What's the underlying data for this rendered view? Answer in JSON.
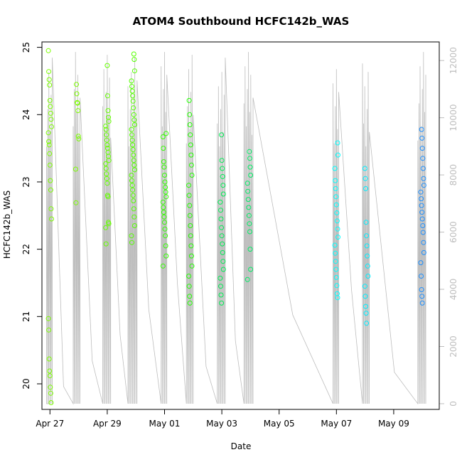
{
  "chart_data": {
    "type": "scatter",
    "title": "ATOM4 Southbound HCFC142b_WAS",
    "xlabel": "Date",
    "ylabel": "HCFC142b_WAS",
    "x_axis": {
      "range_days": [
        -0.28,
        13.59
      ],
      "ticks": [
        {
          "day": 0,
          "label": "Apr 27"
        },
        {
          "day": 2,
          "label": "Apr 29"
        },
        {
          "day": 4,
          "label": "May 01"
        },
        {
          "day": 6,
          "label": "May 03"
        },
        {
          "day": 8,
          "label": "May 05"
        },
        {
          "day": 10,
          "label": "May 07"
        },
        {
          "day": 12,
          "label": "May 09"
        }
      ]
    },
    "ylim": [
      19.62,
      25.08
    ],
    "y_ticks": [
      20,
      21,
      22,
      23,
      24,
      25
    ],
    "y2_axis": {
      "label": "",
      "ylim": [
        -200,
        12650
      ],
      "ticks": [
        0,
        2000,
        4000,
        6000,
        8000,
        10000,
        12000
      ]
    },
    "colors": {
      "axis": "#000000",
      "right_axis": "#bdbdbd",
      "altitude_trace": "#bdbdbd"
    },
    "series": [
      {
        "day": 0.0,
        "color": "#7cfc00",
        "values": [
          24.95,
          24.64,
          24.52,
          24.44,
          24.21,
          24.12,
          24.02,
          23.93,
          23.82,
          23.73,
          23.6,
          23.55,
          23.42,
          23.25,
          23.02,
          22.88,
          22.6,
          22.45,
          20.97,
          20.8,
          20.37,
          20.19,
          20.12,
          19.95,
          19.86,
          19.72
        ]
      },
      {
        "day": 0.95,
        "color": "#7cfc00",
        "values": [
          24.45,
          24.31,
          24.18,
          24.17,
          24.06,
          23.68,
          23.64,
          23.19,
          22.69
        ]
      },
      {
        "day": 2.0,
        "color": "#66ff00",
        "values": [
          24.73,
          24.28,
          24.06,
          23.96,
          23.9,
          23.83,
          23.78,
          23.7,
          23.62,
          23.55,
          23.5,
          23.44,
          23.38,
          23.32,
          23.27,
          23.2,
          23.12,
          23.05,
          22.98,
          22.8,
          22.78,
          22.4,
          22.38,
          22.32,
          22.08
        ]
      },
      {
        "day": 2.9,
        "color": "#55ff00",
        "values": [
          24.9,
          24.82,
          24.65,
          24.5,
          24.42,
          24.35,
          24.28,
          24.2,
          24.1,
          24.0,
          23.92,
          23.85,
          23.78,
          23.7,
          23.62,
          23.55,
          23.48,
          23.4,
          23.32,
          23.25,
          23.18,
          23.1,
          23.02,
          22.95,
          22.88,
          22.8,
          22.72,
          22.6,
          22.48,
          22.35,
          22.2,
          22.1
        ]
      },
      {
        "day": 4.0,
        "color": "#33ff00",
        "values": [
          23.72,
          23.67,
          23.5,
          23.3,
          23.22,
          23.1,
          23.0,
          22.92,
          22.85,
          22.78,
          22.7,
          22.62,
          22.55,
          22.48,
          22.4,
          22.3,
          22.2,
          22.05,
          21.9,
          21.75
        ]
      },
      {
        "day": 4.9,
        "color": "#22ff00",
        "values": [
          24.21,
          24.0,
          23.85,
          23.7,
          23.55,
          23.4,
          23.25,
          23.1,
          22.95,
          22.8,
          22.65,
          22.5,
          22.35,
          22.2,
          22.05,
          21.9,
          21.75,
          21.6,
          21.45,
          21.3,
          21.2
        ]
      },
      {
        "day": 6.0,
        "color": "#00ee55",
        "values": [
          23.7,
          23.32,
          23.2,
          23.08,
          22.95,
          22.82,
          22.7,
          22.58,
          22.45,
          22.32,
          22.2,
          22.08,
          21.95,
          21.82,
          21.7,
          21.57,
          21.45,
          21.32,
          21.2
        ]
      },
      {
        "day": 6.95,
        "color": "#00ee66",
        "values": [
          23.45,
          23.35,
          23.22,
          23.1,
          22.98,
          22.86,
          22.74,
          22.62,
          22.5,
          22.38,
          22.26,
          22.0,
          21.7,
          21.55
        ]
      },
      {
        "day": 10.0,
        "color": "#00ffff",
        "values": [
          23.58,
          23.4,
          23.2,
          23.02,
          22.9,
          22.78,
          22.66,
          22.54,
          22.42,
          22.3,
          22.18,
          22.06,
          21.94,
          21.82,
          21.7,
          21.58,
          21.46,
          21.34,
          21.28
        ]
      },
      {
        "day": 11.05,
        "color": "#00eeff",
        "values": [
          23.2,
          23.05,
          22.9,
          22.4,
          22.2,
          22.05,
          21.9,
          21.75,
          21.6,
          21.45,
          21.3,
          21.15,
          21.05,
          20.9
        ]
      },
      {
        "day": 13.0,
        "color": "#1e90ff",
        "values": [
          23.78,
          23.65,
          23.5,
          23.35,
          23.2,
          23.05,
          22.95,
          22.85,
          22.75,
          22.65,
          22.55,
          22.45,
          22.35,
          22.25,
          22.1,
          21.95,
          21.8,
          21.6,
          21.4,
          21.3,
          21.2
        ]
      }
    ]
  }
}
